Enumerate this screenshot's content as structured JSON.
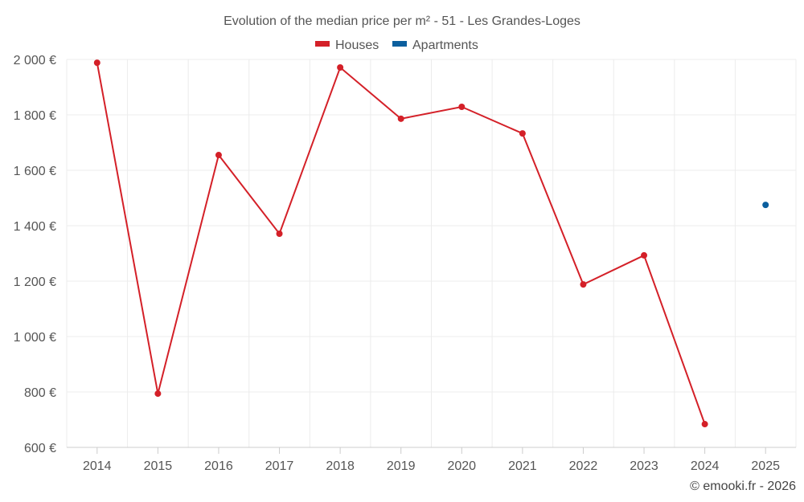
{
  "chart_data": {
    "type": "line",
    "title": "Evolution of the median price per m² - 51 - Les Grandes-Loges",
    "categories": [
      "2014",
      "2015",
      "2016",
      "2017",
      "2018",
      "2019",
      "2020",
      "2021",
      "2022",
      "2023",
      "2024",
      "2025"
    ],
    "series": [
      {
        "name": "Houses",
        "color": "#d42028",
        "values": [
          1988,
          794,
          1655,
          1371,
          1971,
          1786,
          1829,
          1733,
          1188,
          1293,
          684,
          null
        ]
      },
      {
        "name": "Apartments",
        "color": "#0b5f9e",
        "values": [
          null,
          null,
          null,
          null,
          null,
          null,
          null,
          null,
          null,
          null,
          null,
          1475
        ]
      }
    ],
    "ylim": [
      600,
      2000
    ],
    "yticks": [
      600,
      800,
      1000,
      1200,
      1400,
      1600,
      1800,
      2000
    ],
    "ytick_labels": [
      "600 €",
      "800 €",
      "1 000 €",
      "1 200 €",
      "1 400 €",
      "1 600 €",
      "1 800 €",
      "2 000 €"
    ],
    "grid": true,
    "legend_position": "top-center",
    "xlabel": "",
    "ylabel": ""
  },
  "credit": "© emooki.fr - 2026"
}
